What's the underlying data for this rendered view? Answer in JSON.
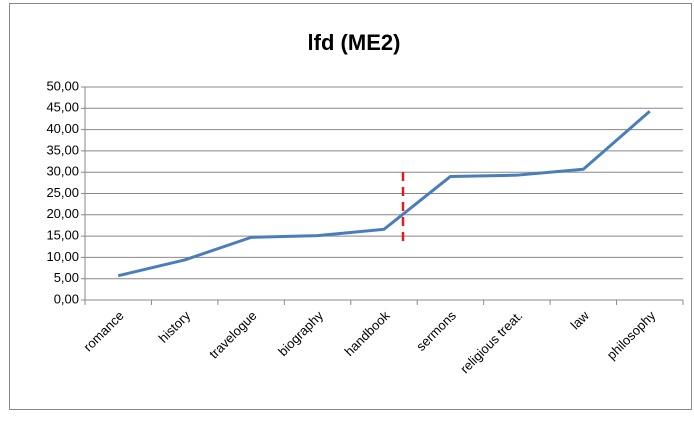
{
  "chart_data": {
    "type": "line",
    "title": "lfd (ME2)",
    "categories": [
      "romance",
      "history",
      "travelogue",
      "biography",
      "handbook",
      "sermons",
      "religious treat.",
      "law",
      "philosophy"
    ],
    "series": [
      {
        "name": "lfd (ME2)",
        "color": "#4a7ebb",
        "values": [
          5.7,
          9.4,
          14.7,
          15.1,
          16.6,
          29.0,
          29.3,
          30.7,
          44.3
        ]
      }
    ],
    "ylim": [
      0,
      50
    ],
    "yticks": [
      {
        "value": 0,
        "label": "0,00"
      },
      {
        "value": 5,
        "label": "5,00"
      },
      {
        "value": 10,
        "label": "10,00"
      },
      {
        "value": 15,
        "label": "15,00"
      },
      {
        "value": 20,
        "label": "20,00"
      },
      {
        "value": 25,
        "label": "25,00"
      },
      {
        "value": 30,
        "label": "30,00"
      },
      {
        "value": 35,
        "label": "35,00"
      },
      {
        "value": 40,
        "label": "40,00"
      },
      {
        "value": 45,
        "label": "45,00"
      },
      {
        "value": 50,
        "label": "50,00"
      }
    ],
    "grid": true
  }
}
